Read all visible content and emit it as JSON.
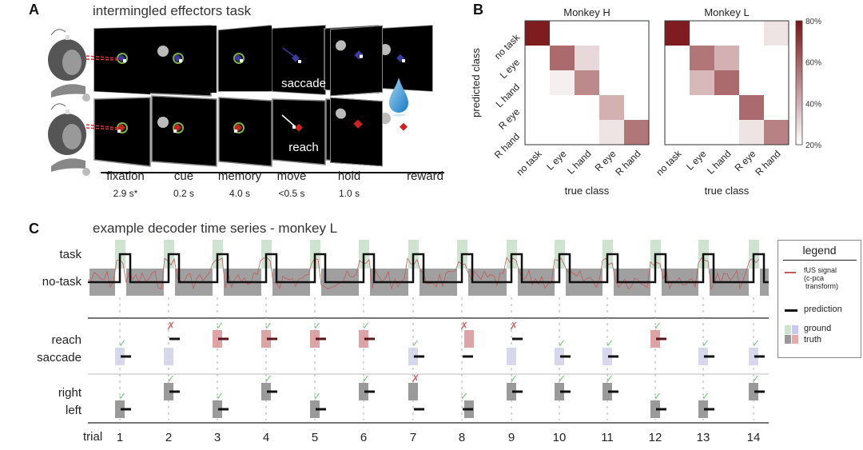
{
  "panelA": {
    "label": "A",
    "title": "intermingled effectors task",
    "row_labels": [
      "saccade",
      "reach"
    ],
    "phases": [
      {
        "name": "fixation",
        "duration": "2.9 s*"
      },
      {
        "name": "cue",
        "duration": "0.2 s"
      },
      {
        "name": "memory",
        "duration": "4.0 s"
      },
      {
        "name": "move",
        "duration": "<0.5 s"
      },
      {
        "name": "hold",
        "duration": "1.0 s"
      },
      {
        "name": "reward",
        "duration": ""
      }
    ],
    "icons": [
      "monkey-illustration",
      "joystick-hand-icon",
      "water-drop-icon"
    ]
  },
  "panelB": {
    "label": "B"
  },
  "panelC": {
    "label": "C",
    "title": "example decoder time series - monkey L",
    "top_labels": [
      "task",
      "no-task"
    ],
    "mid_labels": [
      "reach",
      "saccade"
    ],
    "low_labels": [
      "right",
      "left"
    ],
    "trial_label": "trial",
    "legend": {
      "title": "legend",
      "signal": "fUS signal",
      "signal_sub1": "(c-pca",
      "signal_sub2": "transform)",
      "prediction": "prediction",
      "ground": "ground",
      "truth": "truth"
    }
  },
  "colors": {
    "accent_red": "#7a1418",
    "ground_green": "#cfe3d1",
    "ground_blue": "#d4d4ea",
    "ground_gray": "#a0a0a0",
    "ground_pink": "#d99a9c",
    "signal": "#c25a5a",
    "check": "#7cc28a",
    "cross": "#d06a6a"
  },
  "chart_data": [
    {
      "type": "heatmap",
      "title": "Monkey H",
      "xlabel": "true class",
      "ylabel": "predicted class",
      "x_categories": [
        "no task",
        "L eye",
        "L hand",
        "R eye",
        "R hand"
      ],
      "y_categories": [
        "no task",
        "L eye",
        "L hand",
        "R eye",
        "R hand"
      ],
      "colorbar": {
        "min": 20,
        "max": 80,
        "ticks": [
          "20%",
          "40%",
          "60%",
          "80%"
        ]
      },
      "values": [
        [
          78,
          0,
          0,
          0,
          0
        ],
        [
          0,
          58,
          30,
          0,
          0
        ],
        [
          0,
          24,
          50,
          0,
          0
        ],
        [
          0,
          0,
          0,
          40,
          0
        ],
        [
          0,
          0,
          0,
          27,
          55
        ]
      ]
    },
    {
      "type": "heatmap",
      "title": "Monkey L",
      "xlabel": "true class",
      "ylabel": "",
      "x_categories": [
        "no task",
        "L eye",
        "L hand",
        "R eye",
        "R hand"
      ],
      "y_categories": [
        "no task",
        "L eye",
        "L hand",
        "R eye",
        "R hand"
      ],
      "colorbar": {
        "min": 20,
        "max": 80,
        "ticks": [
          "20%",
          "40%",
          "60%",
          "80%"
        ]
      },
      "values": [
        [
          78,
          0,
          0,
          0,
          27
        ],
        [
          0,
          55,
          40,
          0,
          0
        ],
        [
          0,
          38,
          58,
          0,
          0
        ],
        [
          0,
          0,
          0,
          58,
          0
        ],
        [
          0,
          0,
          0,
          27,
          52
        ]
      ]
    },
    {
      "type": "table",
      "title": "example decoder time series - monkey L",
      "trials": [
        1,
        2,
        3,
        4,
        5,
        6,
        7,
        8,
        9,
        10,
        11,
        12,
        13,
        14
      ],
      "effector_truth": [
        "saccade",
        "saccade",
        "reach",
        "reach",
        "reach",
        "reach",
        "saccade",
        "reach",
        "saccade",
        "saccade",
        "saccade",
        "reach",
        "saccade",
        "saccade"
      ],
      "effector_pred": [
        "saccade",
        "reach",
        "reach",
        "reach",
        "reach",
        "reach",
        "saccade",
        "saccade",
        "reach",
        "saccade",
        "saccade",
        "reach",
        "saccade",
        "saccade"
      ],
      "effector_correct": [
        true,
        false,
        true,
        true,
        true,
        true,
        true,
        false,
        false,
        true,
        true,
        true,
        true,
        true
      ],
      "side_truth": [
        "left",
        "right",
        "left",
        "right",
        "left",
        "right",
        "right",
        "left",
        "right",
        "right",
        "right",
        "left",
        "left",
        "right"
      ],
      "side_pred": [
        "left",
        "right",
        "left",
        "right",
        "left",
        "right",
        "left",
        "left",
        "right",
        "right",
        "right",
        "left",
        "left",
        "right"
      ],
      "side_correct": [
        true,
        true,
        true,
        true,
        true,
        true,
        false,
        true,
        true,
        true,
        true,
        true,
        true,
        true
      ]
    }
  ]
}
